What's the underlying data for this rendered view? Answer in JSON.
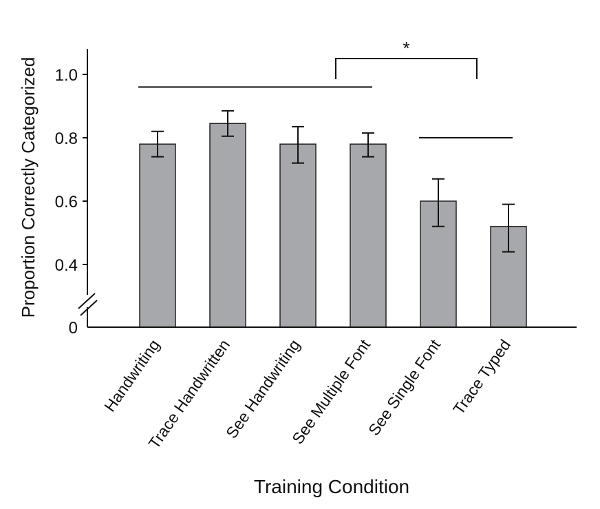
{
  "chart_data": {
    "type": "bar",
    "xlabel": "Training Condition",
    "ylabel": "Proportion Correctly Categorized",
    "ylim": [
      0.2,
      1.08
    ],
    "y_ticks": [
      {
        "value": 0.4,
        "label": "0.4"
      },
      {
        "value": 0.6,
        "label": "0.6"
      },
      {
        "value": 0.8,
        "label": "0.8"
      },
      {
        "value": 1.0,
        "label": "1.0"
      }
    ],
    "axis_origin_label": "0",
    "axis_break": true,
    "categories": [
      "Handwriting",
      "Trace Handwritten",
      "See Handwriting",
      "See Multiple Font",
      "See Single Font",
      "Trace Typed"
    ],
    "values": [
      0.78,
      0.845,
      0.78,
      0.78,
      0.6,
      0.52
    ],
    "error_low": [
      0.74,
      0.805,
      0.72,
      0.74,
      0.52,
      0.44
    ],
    "error_high": [
      0.82,
      0.885,
      0.835,
      0.815,
      0.67,
      0.59
    ],
    "bar_color": "#a7a8ab",
    "group_lines": [
      {
        "from": 0,
        "to": 3,
        "y": 0.96
      },
      {
        "from": 4,
        "to": 5,
        "y": 0.8
      }
    ],
    "significance": {
      "from": 3,
      "to": 4,
      "y": 1.05,
      "label": "*"
    }
  }
}
